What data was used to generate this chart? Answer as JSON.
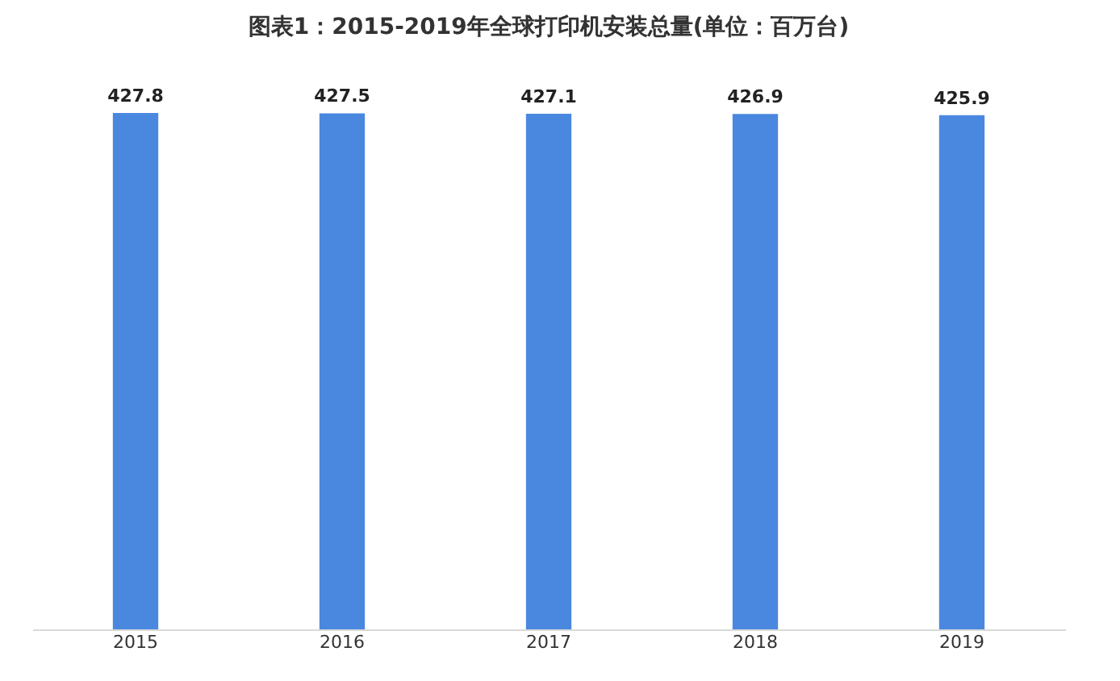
{
  "chart_data": {
    "type": "bar",
    "title": "图表1：2015-2019年全球打印机安装总量(单位：百万台)",
    "categories": [
      "2015",
      "2016",
      "2017",
      "2018",
      "2019"
    ],
    "values": [
      427.8,
      427.5,
      427.1,
      426.9,
      425.9
    ],
    "color": "#4a88e0",
    "data_labels": true,
    "tick_labels": "x"
  }
}
